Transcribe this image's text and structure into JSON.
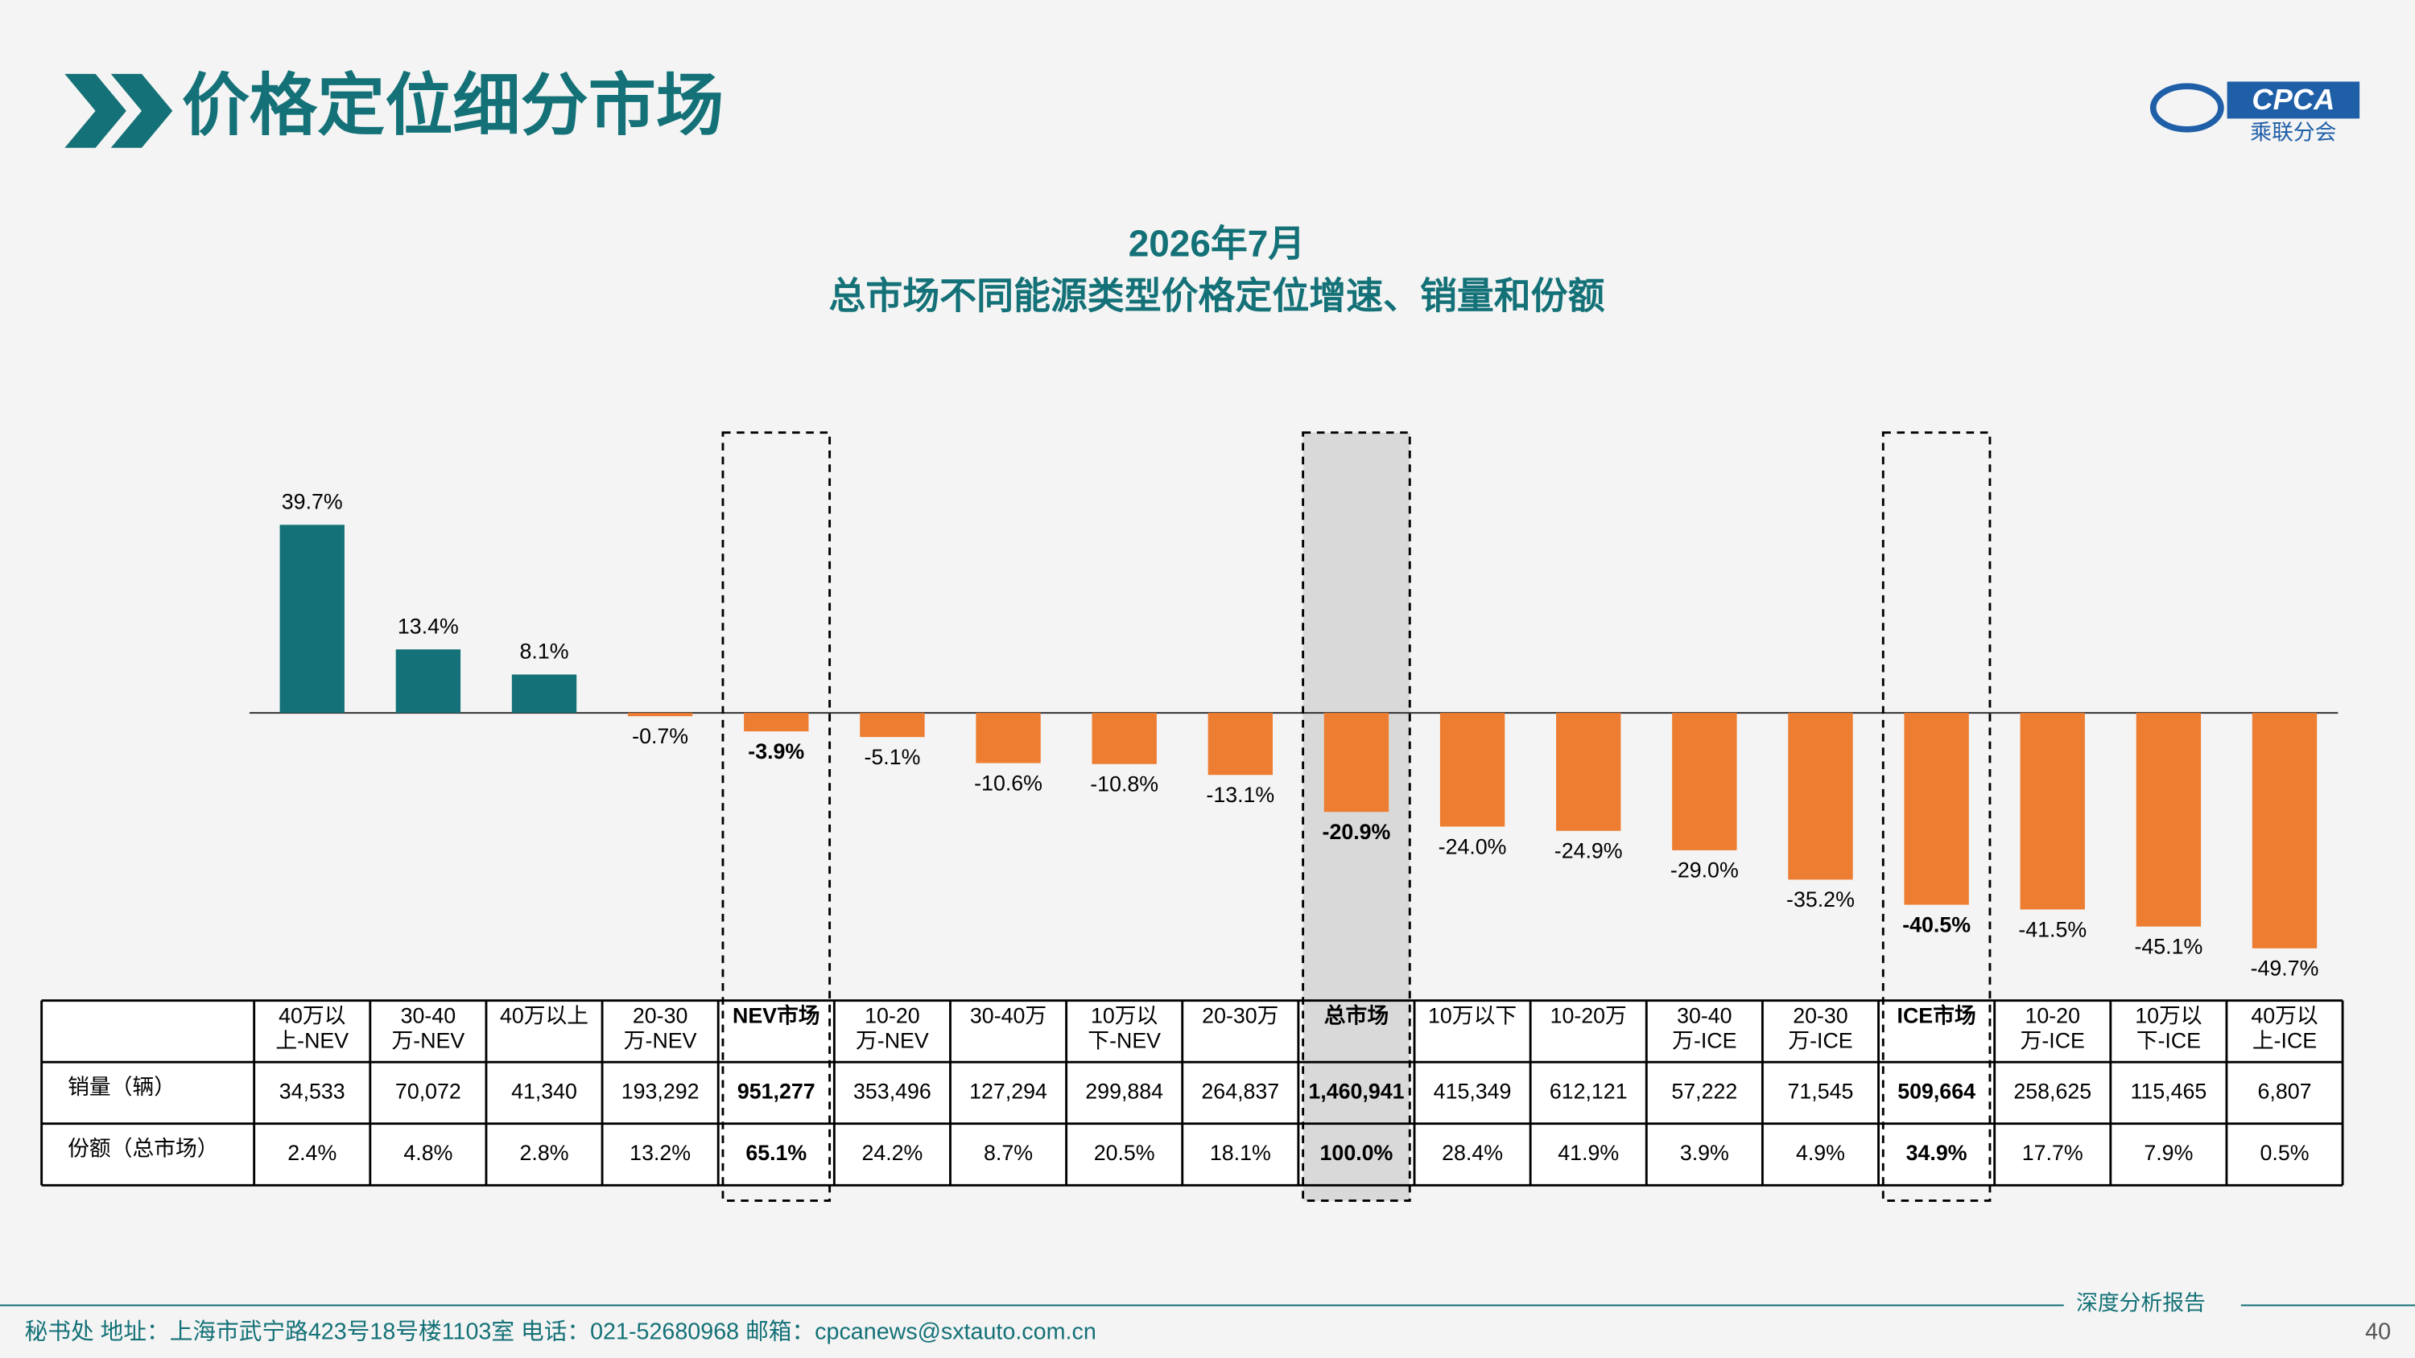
{
  "header": {
    "title": "价格定位细分市场",
    "logo": {
      "name": "CPCA",
      "subtitle": "乘联分会"
    }
  },
  "chart_data": {
    "type": "bar",
    "title": "2026年7月",
    "subtitle": "总市场不同能源类型价格定位增速、销量和份额",
    "categories": [
      [
        "40万以",
        "上-NEV"
      ],
      [
        "30-40",
        "万-NEV"
      ],
      [
        "40万以上"
      ],
      [
        "20-30",
        "万-NEV"
      ],
      [
        "NEV市场"
      ],
      [
        "10-20",
        "万-NEV"
      ],
      [
        "30-40万"
      ],
      [
        "10万以",
        "下-NEV"
      ],
      [
        "20-30万"
      ],
      [
        "总市场"
      ],
      [
        "10万以下"
      ],
      [
        "10-20万"
      ],
      [
        "30-40",
        "万-ICE"
      ],
      [
        "20-30",
        "万-ICE"
      ],
      [
        "ICE市场"
      ],
      [
        "10-20",
        "万-ICE"
      ],
      [
        "10万以",
        "下-ICE"
      ],
      [
        "40万以",
        "上-ICE"
      ]
    ],
    "values": [
      39.7,
      13.4,
      8.1,
      -0.7,
      -3.9,
      -5.1,
      -10.6,
      -10.8,
      -13.1,
      -20.9,
      -24.0,
      -24.9,
      -29.0,
      -35.2,
      -40.5,
      -41.5,
      -45.1,
      -49.7
    ],
    "value_labels": [
      "39.7%",
      "13.4%",
      "8.1%",
      "-0.7%",
      "-3.9%",
      "-5.1%",
      "-10.6%",
      "-10.8%",
      "-13.1%",
      "-20.9%",
      "-24.0%",
      "-24.9%",
      "-29.0%",
      "-35.2%",
      "-40.5%",
      "-41.5%",
      "-45.1%",
      "-49.7%"
    ],
    "colors": {
      "positive": "#137177",
      "negative": "#ed7d31"
    },
    "ylim": [
      -50,
      40
    ],
    "highlight": [
      4,
      9,
      14
    ],
    "table": {
      "rows": [
        {
          "label": "销量（辆）",
          "cells": [
            "34,533",
            "70,072",
            "41,340",
            "193,292",
            "951,277",
            "353,496",
            "127,294",
            "299,884",
            "264,837",
            "1,460,941",
            "415,349",
            "612,121",
            "57,222",
            "71,545",
            "509,664",
            "258,625",
            "115,465",
            "6,807"
          ]
        },
        {
          "label": "份额（总市场）",
          "cells": [
            "2.4%",
            "4.8%",
            "2.8%",
            "13.2%",
            "65.1%",
            "24.2%",
            "8.7%",
            "20.5%",
            "18.1%",
            "100.0%",
            "28.4%",
            "41.9%",
            "3.9%",
            "4.9%",
            "34.9%",
            "17.7%",
            "7.9%",
            "0.5%"
          ]
        }
      ]
    }
  },
  "footer": {
    "contact": "秘书处   地址：上海市武宁路423号18号楼1103室   电话：021-52680968   邮箱：cpcanews@sxtauto.com.cn",
    "report": "深度分析报告",
    "page": "40"
  }
}
